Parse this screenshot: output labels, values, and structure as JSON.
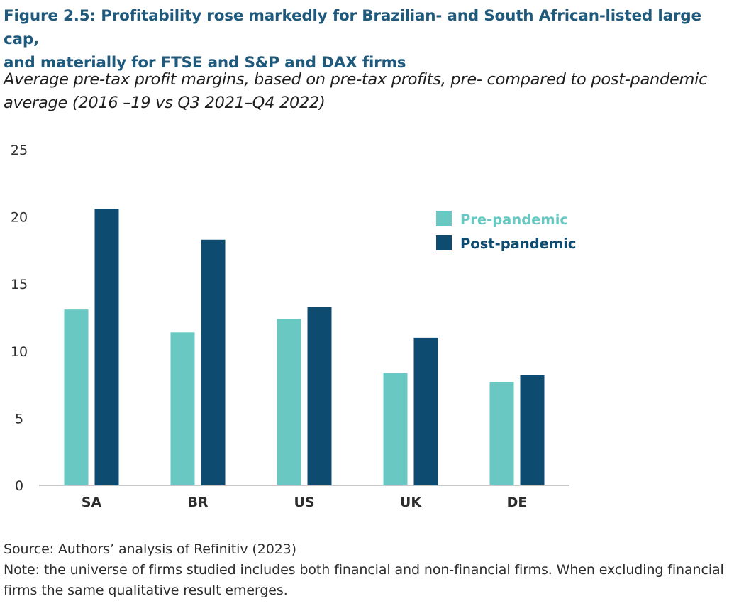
{
  "figure": {
    "title": "Figure 2.5: Profitability rose markedly for Brazilian- and South African-listed large cap,\nand materially for FTSE and S&P and DAX firms",
    "subtitle": "Average pre-tax profit margins, based on pre-tax profits, pre- compared to post-pandemic average (2016 –19 vs Q3 2021–Q4 2022)",
    "source": "Source: Authors’ analysis of Refinitiv (2023)",
    "note": "Note: the universe of firms studied includes both financial and non-financial firms. When excluding financial firms the same qualitative result emerges."
  },
  "chart_data": {
    "type": "bar",
    "categories": [
      "SA",
      "BR",
      "US",
      "UK",
      "DE"
    ],
    "series": [
      {
        "name": "Pre-pandemic",
        "color": "#6ac8c3",
        "values": [
          13.1,
          11.4,
          12.4,
          8.4,
          7.7
        ]
      },
      {
        "name": "Post-pandemic",
        "color": "#0d4c70",
        "values": [
          20.6,
          18.3,
          13.3,
          11.0,
          8.2
        ]
      }
    ],
    "ylim": [
      0,
      25
    ],
    "yticks": [
      0,
      5,
      10,
      15,
      20,
      25
    ],
    "xlabel": "",
    "ylabel": "",
    "grid": false,
    "legend_position": "top-right"
  }
}
